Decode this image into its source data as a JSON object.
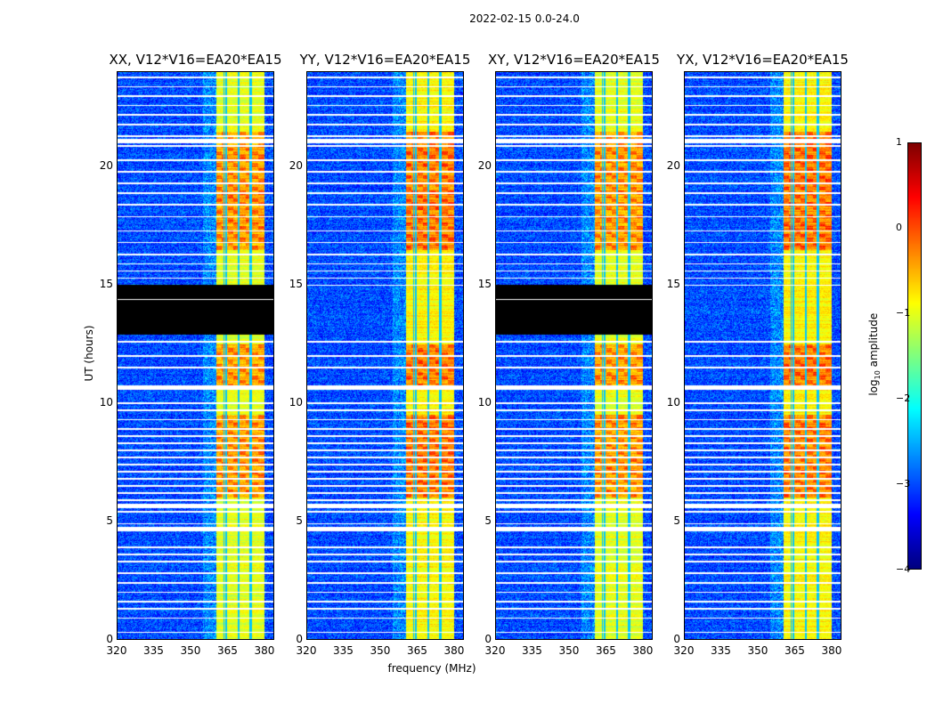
{
  "chart_data": {
    "type": "heatmap",
    "title": "2022-02-15 0.0-24.0",
    "xlabel": "frequency (MHz)",
    "ylabel": "UT (hours)",
    "xlim": [
      320,
      384
    ],
    "ylim": [
      0,
      24
    ],
    "xticks": [
      "320",
      "335",
      "350",
      "365",
      "380"
    ],
    "yticks": [
      "0",
      "5",
      "10",
      "15",
      "20"
    ],
    "colorbar": {
      "label_main": "log",
      "label_sub": "10",
      "label_rest": " amplitude",
      "range": [
        -4,
        1
      ],
      "ticks": [
        "1",
        "0",
        "−1",
        "−2",
        "−3",
        "−4"
      ],
      "colormap": "jet"
    },
    "panels": [
      {
        "title": "XX, V12*V16=EA20*EA15",
        "missing_range_hours": [
          12.9,
          15.0
        ]
      },
      {
        "title": "YY, V12*V16=EA20*EA15",
        "missing_range_hours": null
      },
      {
        "title": "XY, V12*V16=EA20*EA15",
        "missing_range_hours": [
          12.9,
          15.0
        ]
      },
      {
        "title": "YX, V12*V16=EA20*EA15",
        "missing_range_hours": null
      }
    ],
    "background_level": -3.0,
    "signal_band_mhz": [
      360.5,
      380
    ],
    "signal_subband_edges_mhz": [
      364.5,
      369.5,
      374.5
    ],
    "signal_level": -1.0,
    "bright_periods_hours": [
      [
        16.5,
        21.5
      ],
      [
        6.0,
        9.5
      ],
      [
        10.6,
        12.5
      ]
    ],
    "flagged_rows_hours": [
      0.3,
      0.9,
      1.3,
      1.6,
      2.0,
      2.4,
      2.8,
      3.3,
      3.6,
      3.9,
      4.6,
      4.9,
      5.4,
      5.6,
      5.9,
      6.2,
      6.5,
      6.8,
      7.1,
      7.4,
      7.7,
      8.0,
      8.3,
      8.6,
      8.9,
      9.3,
      9.7,
      10.0,
      10.6,
      11.5,
      12.0,
      12.6,
      15.0,
      15.3,
      15.6,
      15.9,
      16.3,
      16.8,
      17.3,
      17.9,
      18.4,
      18.9,
      19.3,
      19.8,
      20.3,
      20.9,
      21.3,
      21.8,
      22.2,
      22.6,
      23.0,
      23.4,
      23.8
    ],
    "flagged_wide_hours": [
      [
        4.6,
        4.78
      ],
      [
        10.55,
        10.75
      ],
      [
        21.0,
        21.2
      ],
      [
        5.6,
        5.75
      ]
    ]
  }
}
